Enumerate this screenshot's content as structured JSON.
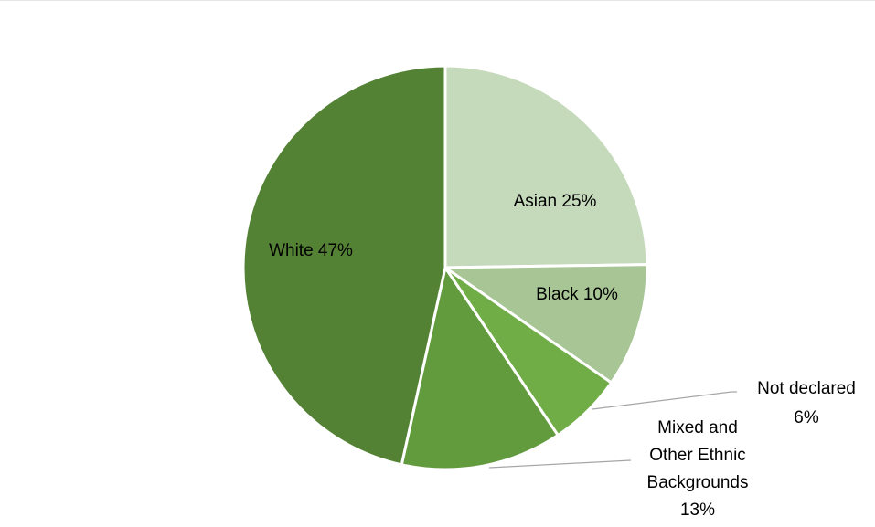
{
  "chart_data": {
    "type": "pie",
    "title": "",
    "slices": [
      {
        "label": "Asian",
        "value": 25,
        "value_text": "25%",
        "color": "#c5d9bb"
      },
      {
        "label": "Black",
        "value": 10,
        "value_text": "10%",
        "color": "#a7c595"
      },
      {
        "label": "Not declared",
        "value": 6,
        "value_text": "6%",
        "color": "#70ad47"
      },
      {
        "label": "Mixed and Other Ethnic Backgrounds",
        "value": 13,
        "value_text": "13%",
        "color": "#629a3e"
      },
      {
        "label": "White",
        "value": 47,
        "value_text": "47%",
        "color": "#548235"
      }
    ],
    "legend": "none",
    "start_angle": "12 o'clock, clockwise"
  },
  "labels": {
    "asian": "Asian 25%",
    "black": "Black 10%",
    "not_declared_line1": "Not declared",
    "not_declared_line2": "6%",
    "mixed_line1": "Mixed and",
    "mixed_line2": "Other Ethnic",
    "mixed_line3": "Backgrounds",
    "mixed_line4": "13%",
    "white": "White 47%"
  }
}
